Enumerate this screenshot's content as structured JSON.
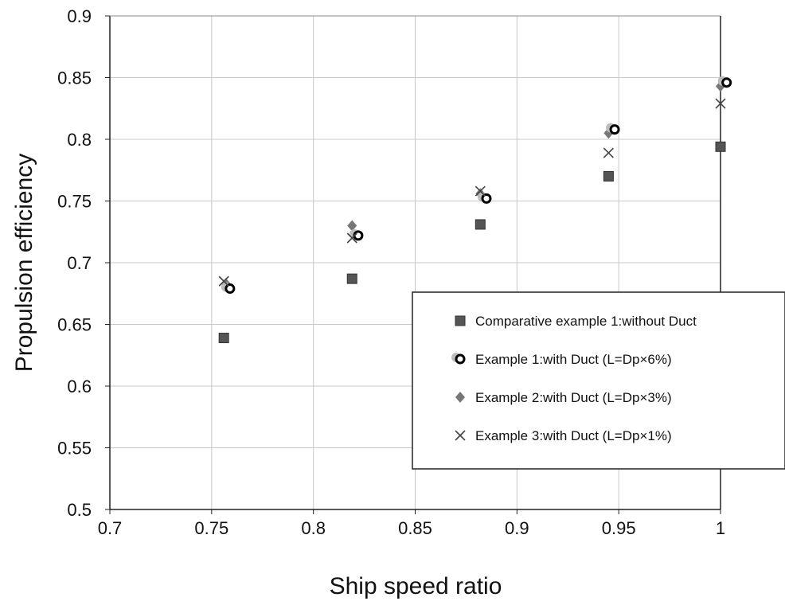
{
  "chart_data": {
    "type": "scatter",
    "xlabel": "Ship speed ratio",
    "ylabel": "Propulsion efficiency",
    "xlim": [
      0.7,
      1.0
    ],
    "ylim": [
      0.5,
      0.9
    ],
    "xticks": [
      "0.7",
      "0.75",
      "0.8",
      "0.85",
      "0.9",
      "0.95",
      "1"
    ],
    "yticks": [
      "0.5",
      "0.55",
      "0.6",
      "0.65",
      "0.7",
      "0.75",
      "0.8",
      "0.85",
      "0.9"
    ],
    "grid": true,
    "legend_position": "bottom-right",
    "series": [
      {
        "name": "Comparative example  1:without Duct",
        "marker": "square",
        "color": "#555555",
        "x": [
          0.756,
          0.819,
          0.882,
          0.945,
          1.0
        ],
        "y": [
          0.639,
          0.687,
          0.731,
          0.77,
          0.794
        ]
      },
      {
        "name": "Example 1:with Duct (L=Dp×6%)",
        "marker": "ring",
        "color": "#000000",
        "x": [
          0.759,
          0.822,
          0.885,
          0.948,
          1.003
        ],
        "y": [
          0.679,
          0.722,
          0.752,
          0.808,
          0.846
        ]
      },
      {
        "name": "Example 2:with Duct (L=Dp×3%)",
        "marker": "diamond",
        "color": "#777777",
        "x": [
          0.757,
          0.819,
          0.882,
          0.945,
          1.0
        ],
        "y": [
          0.683,
          0.73,
          0.756,
          0.805,
          0.843
        ]
      },
      {
        "name": "Example 3:with Duct (L=Dp×1%)",
        "marker": "x",
        "color": "#444444",
        "x": [
          0.756,
          0.819,
          0.882,
          0.945,
          1.0
        ],
        "y": [
          0.685,
          0.72,
          0.758,
          0.789,
          0.829
        ]
      }
    ]
  }
}
